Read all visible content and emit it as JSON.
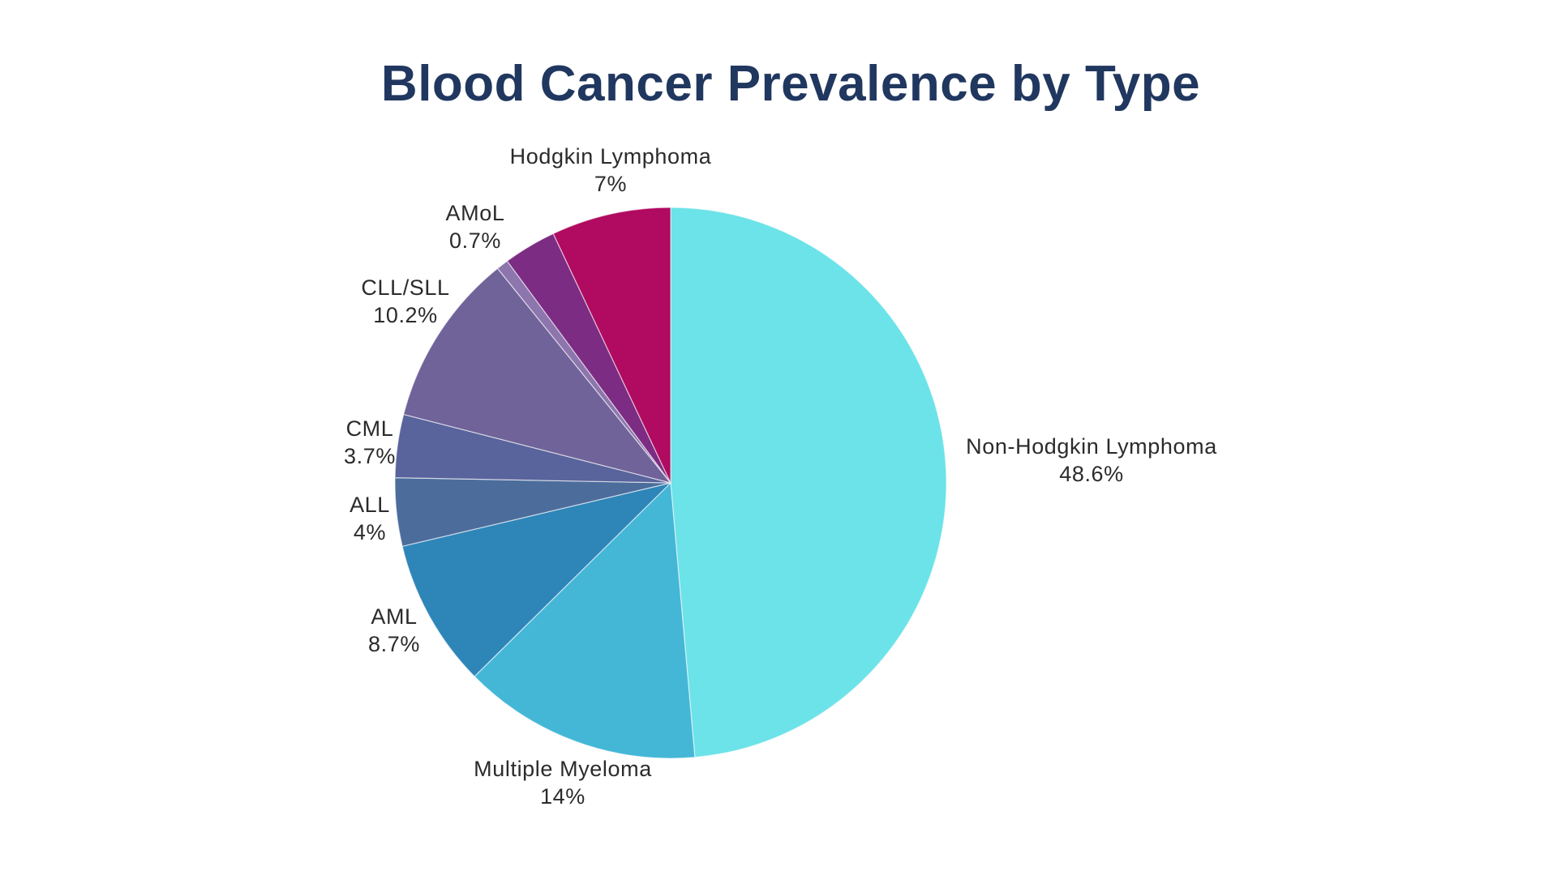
{
  "header": {
    "title": "Blood Cancer Prevalence by Type",
    "title_color": "#20375f"
  },
  "chart_data": {
    "type": "pie",
    "title": "Blood Cancer Prevalence by Type",
    "direction": "clockwise",
    "start_angle_deg": 0,
    "legend_position": "none",
    "label_style": "outside, two lines (name above percent)",
    "label_text_color": "#2b2b2b",
    "slice_border_color": "rgba(255,255,255,0.6)",
    "slices": [
      {
        "label": "Non-Hodgkin Lymphoma",
        "value": 48.6,
        "percent_label": "48.6%",
        "color": "#6ce3e8"
      },
      {
        "label": "Multiple Myeloma",
        "value": 14,
        "percent_label": "14%",
        "color": "#44b7d7"
      },
      {
        "label": "AML",
        "value": 8.7,
        "percent_label": "8.7%",
        "color": "#2e85b8"
      },
      {
        "label": "ALL",
        "value": 4,
        "percent_label": "4%",
        "color": "#4c6d9c"
      },
      {
        "label": "CML",
        "value": 3.7,
        "percent_label": "3.7%",
        "color": "#59639c"
      },
      {
        "label": "CLL/SLL",
        "value": 10.2,
        "percent_label": "10.2%",
        "color": "#6f6399"
      },
      {
        "label": "AMoL",
        "value": 0.7,
        "percent_label": "0.7%",
        "color": "#8d75ad"
      },
      {
        "label": "",
        "value": 3.1,
        "percent_label": "",
        "color": "#7c2c82"
      },
      {
        "label": "Hodgkin Lymphoma",
        "value": 7,
        "percent_label": "7%",
        "color": "#b00b60"
      }
    ]
  }
}
